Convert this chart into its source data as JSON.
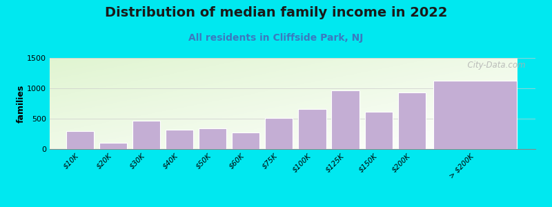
{
  "title": "Distribution of median family income in 2022",
  "subtitle": "All residents in Cliffside Park, NJ",
  "categories": [
    "$10K",
    "$20K",
    "$30K",
    "$40K",
    "$50K",
    "$60K",
    "$75K",
    "$100K",
    "$125K",
    "$150K",
    "$200K",
    "> $200K"
  ],
  "values": [
    290,
    100,
    470,
    320,
    340,
    275,
    510,
    660,
    970,
    610,
    930,
    1130
  ],
  "bar_widths": [
    1,
    1,
    1,
    1,
    1,
    1,
    1,
    1,
    1,
    1,
    1,
    3
  ],
  "bar_color": "#c4aed4",
  "bar_edge_color": "#ffffff",
  "outer_bg": "#00e8f0",
  "ylim": [
    0,
    1500
  ],
  "yticks": [
    0,
    500,
    1000,
    1500
  ],
  "ylabel": "families",
  "title_fontsize": 14,
  "subtitle_fontsize": 10,
  "watermark": "  City-Data.com"
}
